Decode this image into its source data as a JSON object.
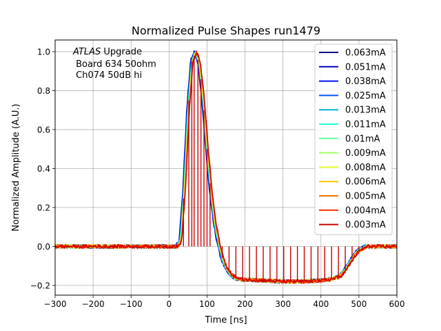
{
  "chart_data": {
    "type": "line",
    "title": "Normalized Pulse Shapes run1479",
    "xlabel": "Time [ns]",
    "ylabel": "Normalized Amplitude (A.U.)",
    "xlim": [
      -300,
      600
    ],
    "ylim": [
      -0.25,
      1.06
    ],
    "xticks": [
      -300,
      -200,
      -100,
      0,
      100,
      200,
      300,
      400,
      500,
      600
    ],
    "xtick_labels": [
      "−300",
      "−200",
      "−100",
      "0",
      "100",
      "200",
      "300",
      "400",
      "500",
      "600"
    ],
    "yticks": [
      -0.2,
      0.0,
      0.2,
      0.4,
      0.6,
      0.8,
      1.0
    ],
    "ytick_labels": [
      "−0.2",
      "0.0",
      "0.2",
      "0.4",
      "0.6",
      "0.8",
      "1.0"
    ],
    "grid": true,
    "legend_position": "top-right",
    "annotation": {
      "italic": "ATLAS",
      "line1_rest": " Upgrade",
      "line2": " Board 634 50ohm",
      "line3": " Ch074 50dB hi"
    },
    "pulse_shape": {
      "x": [
        -300,
        0,
        20,
        30,
        40,
        50,
        60,
        70,
        80,
        90,
        100,
        110,
        120,
        130,
        140,
        150,
        160,
        170,
        180,
        190,
        200,
        250,
        300,
        350,
        400,
        420,
        440,
        450,
        460,
        470,
        480,
        490,
        500,
        520,
        540,
        600
      ],
      "y": [
        0.0,
        0.0,
        0.0,
        0.03,
        0.3,
        0.7,
        0.95,
        1.0,
        0.93,
        0.75,
        0.5,
        0.28,
        0.12,
        0.02,
        -0.06,
        -0.11,
        -0.14,
        -0.155,
        -0.165,
        -0.17,
        -0.17,
        -0.175,
        -0.18,
        -0.18,
        -0.175,
        -0.17,
        -0.16,
        -0.15,
        -0.13,
        -0.1,
        -0.07,
        -0.04,
        -0.02,
        0.0,
        0.0,
        0.0
      ]
    },
    "series": [
      {
        "name": "0.063mA",
        "color": "#00007f"
      },
      {
        "name": "0.051mA",
        "color": "#0000c8"
      },
      {
        "name": "0.038mA",
        "color": "#0010ff"
      },
      {
        "name": "0.025mA",
        "color": "#0058ff"
      },
      {
        "name": "0.013mA",
        "color": "#00b0e0"
      },
      {
        "name": "0.011mA",
        "color": "#1cffdb"
      },
      {
        "name": "0.01mA",
        "color": "#5effa0"
      },
      {
        "name": "0.009mA",
        "color": "#a0ff5e"
      },
      {
        "name": "0.008mA",
        "color": "#e2ff1c"
      },
      {
        "name": "0.006mA",
        "color": "#ffc400"
      },
      {
        "name": "0.005mA",
        "color": "#ff7200"
      },
      {
        "name": "0.004mA",
        "color": "#ff2500"
      },
      {
        "name": "0.003mA",
        "color": "#c80000"
      }
    ]
  }
}
